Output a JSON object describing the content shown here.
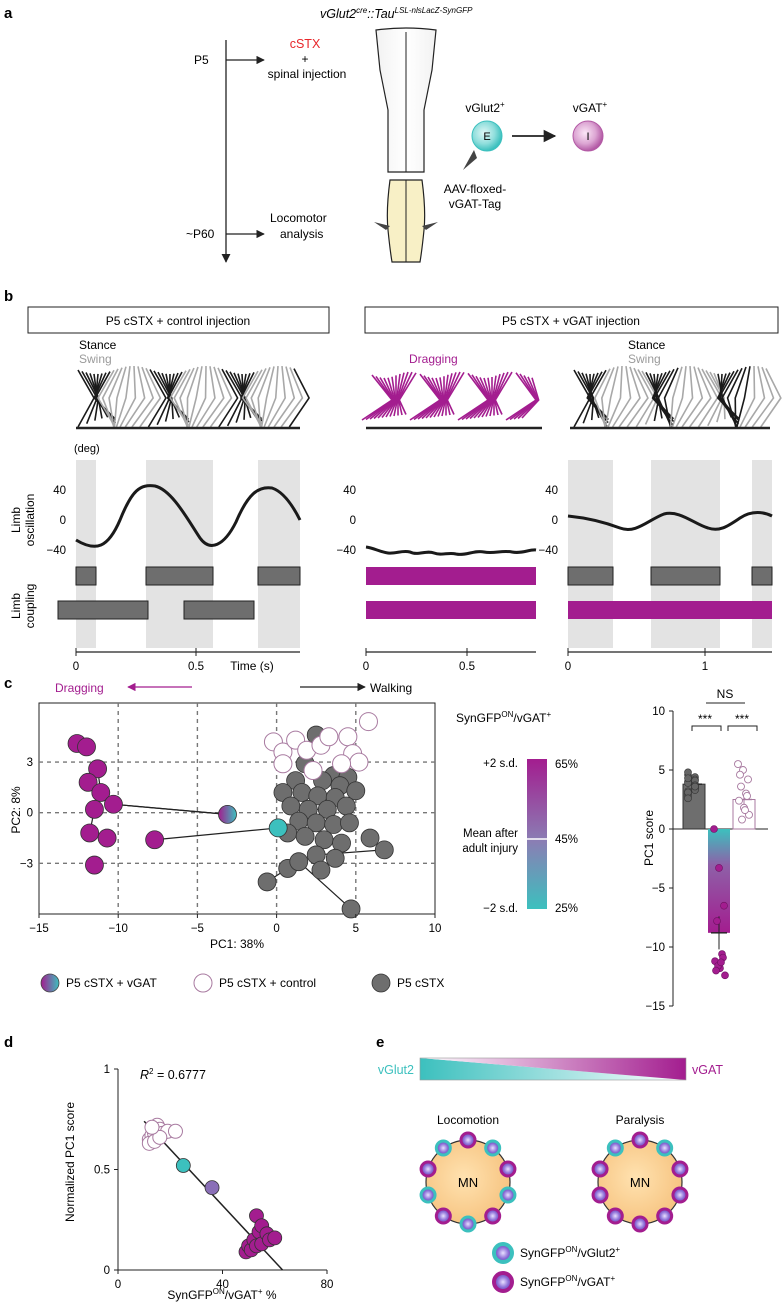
{
  "panel_a": {
    "letter": "a",
    "genotype": {
      "main": "vGlut2",
      "cre": "cre",
      "mid": "::",
      "tau": "Tau",
      "sup": "LSL-nlsLacZ-SynGFP"
    },
    "timeline": {
      "p5": "P5",
      "cstx": "cSTX",
      "plus": "+",
      "spinal": "spinal injection",
      "p60": "~P60",
      "loco1": "Locomotor",
      "loco2": "analysis"
    },
    "aav1": "AAV-floxed-",
    "aav2": "vGAT-Tag",
    "vglut_label": "vGlut2",
    "vglut_sup": "+",
    "vgat_label": "vGAT",
    "vgat_sup": "+",
    "e_letter": "E",
    "i_letter": "I"
  },
  "panel_b": {
    "letter": "b",
    "box_control": "P5 cSTX + control injection",
    "box_vgat": "P5 cSTX + vGAT injection",
    "stance": "Stance",
    "swing": "Swing",
    "dragging": "Dragging",
    "deg": "(deg)",
    "ylabel_osc1": "Limb",
    "ylabel_osc2": "oscillation",
    "ylabel_cpl1": "Limb",
    "ylabel_cpl2": "coupling",
    "yticks": [
      "40",
      "0",
      "−40"
    ],
    "x_left": [
      "0",
      "0.5"
    ],
    "time_label": "Time (s)",
    "x_mid": [
      "0",
      "0.5"
    ],
    "x_right": [
      "0",
      "1"
    ]
  },
  "panel_c": {
    "letter": "c",
    "dragging": "Dragging",
    "walking": "Walking",
    "xlabel": "PC1: 38%",
    "ylabel": "PC2: 8%",
    "xticks": [
      "−15",
      "−10",
      "−5",
      "0",
      "5",
      "10"
    ],
    "yticks": [
      "3",
      "0",
      "−3"
    ],
    "legend": [
      "P5 cSTX + vGAT",
      "P5 cSTX + control",
      "P5 cSTX"
    ],
    "cb_title": "SynGFP",
    "cb_title_sup": "ON",
    "cb_title_rest": "/vGAT",
    "cb_plus": "+2 s.d.",
    "cb_minus": "−2 s.d.",
    "cb_mean1": "Mean after",
    "cb_mean2": "adult injury",
    "cb_pct": [
      "65%",
      "45%",
      "25%"
    ],
    "bar_ylabel": "PC1 score",
    "bar_yticks": [
      "10",
      "5",
      "0",
      "−5",
      "−10",
      "−15"
    ],
    "ns": "NS",
    "sig1": "***",
    "sig2": "***"
  },
  "panel_d": {
    "letter": "d",
    "r2_label": "R",
    "r2_value": "2 = 0.6777",
    "ylabel": "Normalized PC1 score",
    "xlabel_a": "SynGFP",
    "xlabel_sup": "ON",
    "xlabel_b": "/vGAT",
    "xlabel_c": " %",
    "xticks": [
      "0",
      "40",
      "80"
    ],
    "yticks": [
      "1",
      "0.5",
      "0"
    ]
  },
  "panel_e": {
    "letter": "e",
    "vglut": "vGlut2",
    "vgat": "vGAT",
    "locomotion": "Locomotion",
    "paralysis": "Paralysis",
    "mn": "MN",
    "legend1": "SynGFP",
    "legend1_sup": "ON",
    "legend1_rest": "/vGlut2",
    "legend1_plus": "+",
    "legend2": "SynGFP",
    "legend2_sup": "ON",
    "legend2_rest": "/vGAT",
    "legend2_plus": "+"
  },
  "colors": {
    "teal": "#3cc0be",
    "magenta": "#a31d8f",
    "gray": "#6e6e6e",
    "light": "#e3e3e3",
    "red": "#e8262a"
  },
  "chart_data": [
    {
      "type": "scatter",
      "xlabel": "PC1: 38%",
      "ylabel": "PC2: 8%",
      "xlim": [
        -15,
        10
      ],
      "ylim": [
        -6,
        6.5
      ],
      "series": [
        {
          "name": "P5 cSTX + vGAT",
          "points": [
            [
              -12.6,
              4.1
            ],
            [
              -12.0,
              3.9
            ],
            [
              -11.3,
              2.6
            ],
            [
              -11.9,
              1.8
            ],
            [
              -11.1,
              1.2
            ],
            [
              -10.3,
              0.5
            ],
            [
              -11.5,
              0.2
            ],
            [
              -11.8,
              -1.2
            ],
            [
              -10.7,
              -1.5
            ],
            [
              -11.5,
              -3.1
            ],
            [
              -7.7,
              -1.6
            ],
            [
              -3.1,
              -0.1
            ],
            [
              0.1,
              -0.9
            ]
          ]
        },
        {
          "name": "P5 cSTX + control",
          "points": [
            [
              5.8,
              5.4
            ],
            [
              -0.2,
              4.2
            ],
            [
              0.4,
              3.6
            ],
            [
              1.2,
              4.3
            ],
            [
              0.4,
              2.9
            ],
            [
              1.9,
              3.7
            ],
            [
              2.8,
              4.0
            ],
            [
              3.3,
              4.5
            ],
            [
              4.5,
              4.5
            ],
            [
              4.8,
              3.5
            ],
            [
              5.2,
              3.0
            ],
            [
              4.1,
              2.9
            ],
            [
              2.3,
              2.5
            ]
          ]
        },
        {
          "name": "P5 cSTX",
          "points": [
            [
              2.5,
              4.6
            ],
            [
              1.8,
              2.9
            ],
            [
              3.6,
              2.2
            ],
            [
              4.5,
              2.1
            ],
            [
              1.2,
              1.9
            ],
            [
              2.9,
              1.9
            ],
            [
              4.0,
              1.6
            ],
            [
              0.4,
              1.2
            ],
            [
              1.6,
              1.2
            ],
            [
              2.6,
              1.0
            ],
            [
              3.7,
              0.9
            ],
            [
              5.0,
              1.3
            ],
            [
              0.9,
              0.4
            ],
            [
              2.0,
              0.2
            ],
            [
              3.2,
              0.2
            ],
            [
              4.4,
              0.4
            ],
            [
              1.4,
              -0.5
            ],
            [
              2.5,
              -0.6
            ],
            [
              3.6,
              -0.7
            ],
            [
              4.6,
              -0.6
            ],
            [
              0.7,
              -1.2
            ],
            [
              1.8,
              -1.4
            ],
            [
              3.0,
              -1.6
            ],
            [
              4.1,
              -1.8
            ],
            [
              5.9,
              -1.5
            ],
            [
              2.5,
              -2.5
            ],
            [
              0.7,
              -3.3
            ],
            [
              3.7,
              -2.7
            ],
            [
              1.4,
              -2.9
            ],
            [
              2.8,
              -3.4
            ],
            [
              -0.6,
              -4.1
            ],
            [
              6.8,
              -2.2
            ],
            [
              4.7,
              -5.7
            ]
          ]
        }
      ]
    },
    {
      "type": "bar",
      "ylabel": "PC1 score",
      "ylim": [
        -15,
        10
      ],
      "categories": [
        "P5 cSTX",
        "P5 cSTX + vGAT",
        "P5 cSTX + control"
      ],
      "values": [
        3.8,
        -8.8,
        2.5
      ],
      "errors": [
        0.3,
        1.4,
        0.7
      ]
    },
    {
      "type": "scatter",
      "xlabel": "SynGFPON/vGAT+ %",
      "ylabel": "Normalized PC1 score",
      "xlim": [
        0,
        80
      ],
      "ylim": [
        0,
        1
      ],
      "annotation": "R2 = 0.6777",
      "series": [
        {
          "name": "P5 cSTX + control",
          "points": [
            [
              12,
              0.65
            ],
            [
              13,
              0.67
            ],
            [
              14,
              0.68
            ],
            [
              15,
              0.72
            ],
            [
              16,
              0.7
            ],
            [
              17,
              0.68
            ],
            [
              19,
              0.69
            ],
            [
              12,
              0.63
            ],
            [
              14,
              0.64
            ],
            [
              16,
              0.66
            ],
            [
              22,
              0.69
            ],
            [
              13,
              0.71
            ]
          ]
        },
        {
          "name": "P5 cSTX + vGAT",
          "points": [
            [
              25,
              0.52
            ],
            [
              36,
              0.41
            ],
            [
              49,
              0.09
            ],
            [
              50,
              0.12
            ],
            [
              51,
              0.1
            ],
            [
              52,
              0.15
            ],
            [
              53,
              0.12
            ],
            [
              53,
              0.27
            ],
            [
              54,
              0.19
            ],
            [
              55,
              0.13
            ],
            [
              55,
              0.22
            ],
            [
              57,
              0.18
            ],
            [
              58,
              0.15
            ],
            [
              60,
              0.16
            ]
          ]
        }
      ],
      "fit_line": [
        [
          10,
          0.74
        ],
        [
          63,
          0.0
        ]
      ]
    }
  ]
}
